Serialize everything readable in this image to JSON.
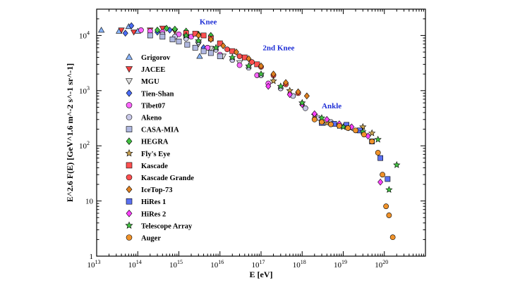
{
  "chart_data": {
    "type": "scatter",
    "title": "",
    "xlabel": "E [eV]",
    "ylabel": "E^2.6 F(E) [GeV^1.6 m^-2 s^-1 sr^-1]",
    "xscale": "log",
    "yscale": "log",
    "xlim": [
      10000000000000.0,
      1e+21
    ],
    "ylim": [
      1,
      30000
    ],
    "legend_position": "left",
    "x_ticks": [
      {
        "base": "10",
        "exp": "13"
      },
      {
        "base": "10",
        "exp": "14"
      },
      {
        "base": "10",
        "exp": "15"
      },
      {
        "base": "10",
        "exp": "16"
      },
      {
        "base": "10",
        "exp": "17"
      },
      {
        "base": "10",
        "exp": "18"
      },
      {
        "base": "10",
        "exp": "19"
      },
      {
        "base": "10",
        "exp": "20"
      }
    ],
    "y_ticks": [
      {
        "base": "1",
        "exp": ""
      },
      {
        "base": "10",
        "exp": ""
      },
      {
        "base": "10",
        "exp": "2"
      },
      {
        "base": "10",
        "exp": "3"
      },
      {
        "base": "10",
        "exp": "4"
      }
    ],
    "annotations": [
      {
        "text": "Knee",
        "x": 3200000000000000.0,
        "y": 16000
      },
      {
        "text": "2nd Knee",
        "x": 1.1e+17,
        "y": 5400
      },
      {
        "text": "Ankle",
        "x": 3e+18,
        "y": 480
      }
    ],
    "series": [
      {
        "name": "Grigorov",
        "marker": "triangle-up",
        "color": "#8ab4f8",
        "points": [
          [
            13000000000000.0,
            12500
          ],
          [
            35000000000000.0,
            12000
          ],
          [
            60000000000000.0,
            14500
          ],
          [
            100000000000000.0,
            12000
          ],
          [
            3200000000000000.0,
            4200
          ]
        ]
      },
      {
        "name": "JACEE",
        "marker": "triangle-down",
        "color": "#f04040",
        "points": [
          [
            40000000000000.0,
            12500
          ],
          [
            80000000000000.0,
            11500
          ],
          [
            200000000000000.0,
            12500
          ],
          [
            400000000000000.0,
            13500
          ],
          [
            800000000000000.0,
            12000
          ]
        ]
      },
      {
        "name": "MGU",
        "marker": "triangle-down",
        "color": "#dddddd",
        "points": [
          [
            1500000000000000.0,
            9000
          ],
          [
            3000000000000000.0,
            7000
          ],
          [
            6000000000000000.0,
            5800
          ],
          [
            1.2e+16,
            4200
          ],
          [
            3e+16,
            3200
          ]
        ]
      },
      {
        "name": "Tien-Shan",
        "marker": "diamond",
        "color": "#4a6cf7",
        "points": [
          [
            50000000000000.0,
            11000
          ],
          [
            70000000000000.0,
            15000
          ],
          [
            300000000000000.0,
            11500
          ],
          [
            600000000000000.0,
            12500
          ],
          [
            1500000000000000.0,
            9000
          ],
          [
            4000000000000000.0,
            6000
          ]
        ]
      },
      {
        "name": "Tibet07",
        "marker": "circle",
        "color": "#ff66ff",
        "points": [
          [
            120000000000000.0,
            12500
          ],
          [
            200000000000000.0,
            12000
          ],
          [
            400000000000000.0,
            11500
          ],
          [
            1000000000000000.0,
            10500
          ],
          [
            2000000000000000.0,
            9500
          ],
          [
            5000000000000000.0,
            6000
          ],
          [
            1e+16,
            4500
          ],
          [
            3e+16,
            2900
          ],
          [
            8e+16,
            1900
          ],
          [
            1.5e+17,
            1350
          ]
        ]
      },
      {
        "name": "Akeno",
        "marker": "circle",
        "color": "#c8c8e8",
        "points": [
          [
            400000000000000.0,
            10500
          ],
          [
            800000000000000.0,
            9500
          ],
          [
            1500000000000000.0,
            8800
          ],
          [
            3000000000000000.0,
            7500
          ],
          [
            8000000000000000.0,
            5500
          ],
          [
            2e+16,
            3600
          ],
          [
            5e+16,
            2600
          ],
          [
            1e+17,
            1900
          ],
          [
            3e+17,
            1100
          ],
          [
            6e+17,
            800
          ],
          [
            1.2e+18,
            480
          ],
          [
            2.5e+18,
            320
          ],
          [
            5e+18,
            270
          ]
        ]
      },
      {
        "name": "CASA-MIA",
        "marker": "square",
        "color": "#b0b8e0",
        "points": [
          [
            200000000000000.0,
            10000
          ],
          [
            400000000000000.0,
            9500
          ],
          [
            700000000000000.0,
            8500
          ],
          [
            1000000000000000.0,
            7800
          ],
          [
            1600000000000000.0,
            6800
          ],
          [
            2500000000000000.0,
            6000
          ],
          [
            4000000000000000.0,
            5200
          ],
          [
            6000000000000000.0,
            4800
          ],
          [
            1e+16,
            4200
          ]
        ]
      },
      {
        "name": "HEGRA",
        "marker": "diamond",
        "color": "#40c040",
        "points": [
          [
            300000000000000.0,
            12500
          ],
          [
            500000000000000.0,
            13500
          ],
          [
            800000000000000.0,
            13000
          ],
          [
            1500000000000000.0,
            12000
          ],
          [
            3000000000000000.0,
            10500
          ],
          [
            6000000000000000.0,
            10000
          ]
        ]
      },
      {
        "name": "Fly's Eye",
        "marker": "star",
        "color": "#c8a050",
        "points": [
          [
            2e+17,
            1500
          ],
          [
            5e+17,
            1000
          ],
          [
            1e+18,
            600
          ],
          [
            2e+18,
            360
          ],
          [
            4e+18,
            260
          ],
          [
            8e+18,
            230
          ],
          [
            1.5e+19,
            210
          ],
          [
            3e+19,
            220
          ],
          [
            5e+19,
            170
          ]
        ]
      },
      {
        "name": "Kascade",
        "marker": "square",
        "color": "#ff5050",
        "points": [
          [
            1500000000000000.0,
            11000
          ],
          [
            2500000000000000.0,
            10800
          ],
          [
            4000000000000000.0,
            10000
          ],
          [
            6000000000000000.0,
            8800
          ],
          [
            1e+16,
            7200
          ],
          [
            2e+16,
            5200
          ],
          [
            4e+16,
            4000
          ],
          [
            8e+16,
            3000
          ]
        ]
      },
      {
        "name": "Kascade Grande",
        "marker": "circle",
        "color": "#ff5050",
        "points": [
          [
            1.5e+16,
            5600
          ],
          [
            3e+16,
            4200
          ],
          [
            6e+16,
            3300
          ],
          [
            1e+17,
            2700
          ],
          [
            2e+17,
            1900
          ],
          [
            4e+17,
            1300
          ],
          [
            8e+17,
            900
          ]
        ]
      },
      {
        "name": "IceTop-73",
        "marker": "diamond",
        "color": "#e08020",
        "points": [
          [
            3000000000000000.0,
            10000
          ],
          [
            6000000000000000.0,
            8500
          ],
          [
            1.2e+16,
            6500
          ],
          [
            2.5e+16,
            5000
          ],
          [
            5e+16,
            3800
          ],
          [
            1e+17,
            2800
          ],
          [
            2e+17,
            2000
          ],
          [
            4e+17,
            1400
          ],
          [
            8e+17,
            950
          ],
          [
            1.3e+18,
            800
          ]
        ]
      },
      {
        "name": "HiRes 1",
        "marker": "square",
        "color": "#5a70f0",
        "points": [
          [
            3e+18,
            260
          ],
          [
            6e+18,
            250
          ],
          [
            1.2e+19,
            240
          ],
          [
            2.5e+19,
            190
          ],
          [
            5e+19,
            120
          ],
          [
            8e+19,
            60
          ],
          [
            1.2e+20,
            25
          ]
        ]
      },
      {
        "name": "HiRes 2",
        "marker": "diamond",
        "color": "#ff40ff",
        "points": [
          [
            1.5e+17,
            1200
          ],
          [
            5e+17,
            850
          ],
          [
            1e+18,
            560
          ],
          [
            2e+18,
            380
          ],
          [
            4e+18,
            300
          ],
          [
            8e+18,
            250
          ],
          [
            1.6e+19,
            220
          ],
          [
            4e+19,
            150
          ],
          [
            8e+19,
            22
          ]
        ]
      },
      {
        "name": "Telescope Array",
        "marker": "star",
        "color": "#40c040",
        "points": [
          [
            1500000000000000.0,
            10000
          ],
          [
            3000000000000000.0,
            8000
          ],
          [
            8000000000000000.0,
            6000
          ],
          [
            2e+16,
            4000
          ],
          [
            5e+16,
            2800
          ],
          [
            1e+17,
            2000
          ],
          [
            3e+17,
            1200
          ],
          [
            1e+18,
            600
          ],
          [
            3e+18,
            320
          ],
          [
            1e+19,
            220
          ],
          [
            3e+19,
            180
          ],
          [
            7e+19,
            130
          ],
          [
            1.3e+20,
            16
          ],
          [
            2e+20,
            45
          ]
        ]
      },
      {
        "name": "Auger",
        "marker": "circle",
        "color": "#f0922a",
        "points": [
          [
            2e+18,
            300
          ],
          [
            3e+18,
            270
          ],
          [
            5e+18,
            245
          ],
          [
            8e+18,
            230
          ],
          [
            1.3e+19,
            210
          ],
          [
            2e+19,
            190
          ],
          [
            3.2e+19,
            160
          ],
          [
            5e+19,
            120
          ],
          [
            7e+19,
            75
          ],
          [
            9e+19,
            30
          ],
          [
            1.1e+20,
            8
          ],
          [
            1.3e+20,
            5.5
          ],
          [
            1.6e+20,
            2.2
          ]
        ]
      }
    ]
  }
}
